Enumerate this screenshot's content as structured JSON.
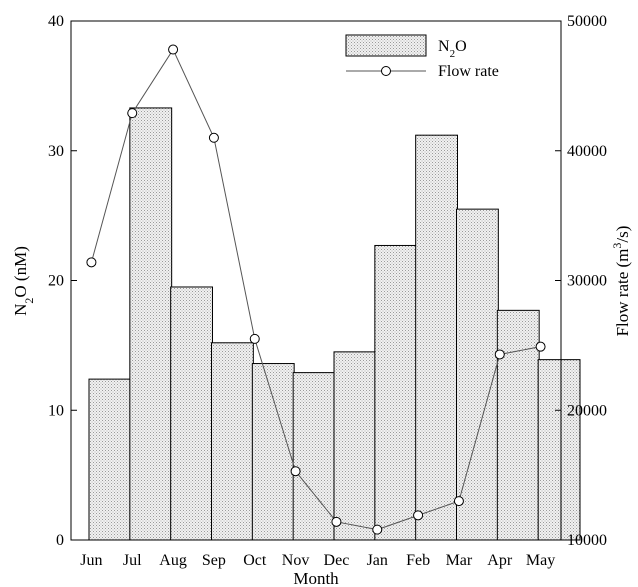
{
  "chart_data": {
    "type": "bar+line",
    "categories": [
      "Jun",
      "Jul",
      "Aug",
      "Sep",
      "Oct",
      "Nov",
      "Dec",
      "Jan",
      "Feb",
      "Mar",
      "Apr",
      "May"
    ],
    "xlabel": "Month",
    "ylabel_left": "N2O (nM)",
    "ylabel_right": "Flow rate (m3/s)",
    "ylim_left": [
      0,
      40
    ],
    "yticks_left": [
      "0",
      "10",
      "20",
      "30",
      "40"
    ],
    "ylim_right": [
      10000,
      50000
    ],
    "yticks_right": [
      "10000",
      "20000",
      "30000",
      "40000",
      "50000"
    ],
    "grid": false,
    "legend_position": "top-right",
    "series": [
      {
        "name": "N2O",
        "kind": "bar",
        "axis": "left",
        "values": [
          12.4,
          33.3,
          19.5,
          15.2,
          13.6,
          12.9,
          14.5,
          22.7,
          31.2,
          25.5,
          17.7,
          13.9
        ]
      },
      {
        "name": "Flow rate",
        "kind": "line",
        "axis": "right",
        "values": [
          31400,
          42900,
          47800,
          41000,
          25500,
          15300,
          11400,
          10800,
          11900,
          13000,
          24300,
          24900
        ]
      }
    ]
  }
}
